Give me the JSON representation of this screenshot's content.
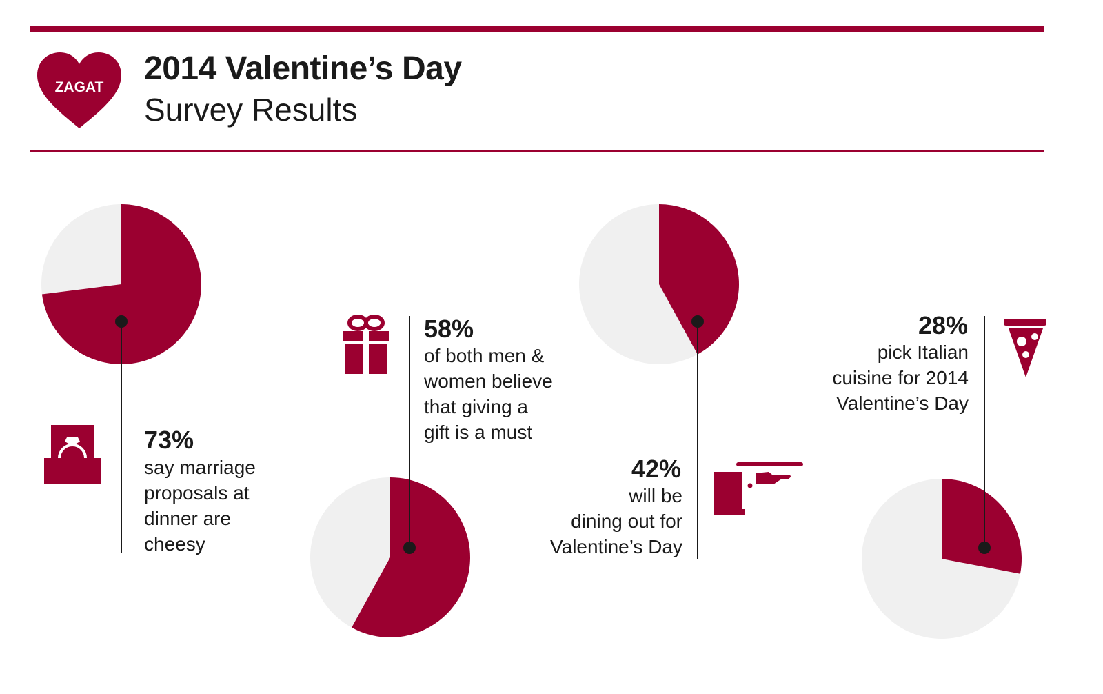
{
  "header": {
    "logo_text": "ZAGAT",
    "title": "2014 Valentine’s Day",
    "subtitle": "Survey Results"
  },
  "colors": {
    "accent": "#9b0030",
    "remainder": "#f0f0f0",
    "text": "#1a1a1a"
  },
  "chart_data": [
    {
      "type": "pie",
      "values": [
        73,
        27
      ],
      "label": "73%",
      "description": "say marriage proposals at dinner are cheesy",
      "icon": "ring-box-icon"
    },
    {
      "type": "pie",
      "values": [
        58,
        42
      ],
      "label": "58%",
      "description": "of both men & women believe that giving a gift is a must",
      "icon": "gift-icon"
    },
    {
      "type": "pie",
      "values": [
        42,
        58
      ],
      "label": "42%",
      "description": "will be dining out for Valentine’s Day",
      "icon": "waiter-tray-icon"
    },
    {
      "type": "pie",
      "values": [
        28,
        72
      ],
      "label": "28%",
      "description": "pick Italian cuisine for 2014 Valentine’s Day",
      "icon": "pizza-slice-icon"
    }
  ],
  "stats": [
    {
      "pct": "73%",
      "lines": [
        "say marriage",
        "proposals at",
        "dinner are",
        "cheesy"
      ]
    },
    {
      "pct": "58%",
      "lines": [
        "of both men &",
        "women believe",
        "that giving a",
        "gift is a must"
      ]
    },
    {
      "pct": "42%",
      "lines": [
        "will be",
        "dining out for",
        "Valentine’s Day"
      ]
    },
    {
      "pct": "28%",
      "lines": [
        "pick Italian",
        "cuisine for 2014",
        "Valentine’s Day"
      ]
    }
  ]
}
